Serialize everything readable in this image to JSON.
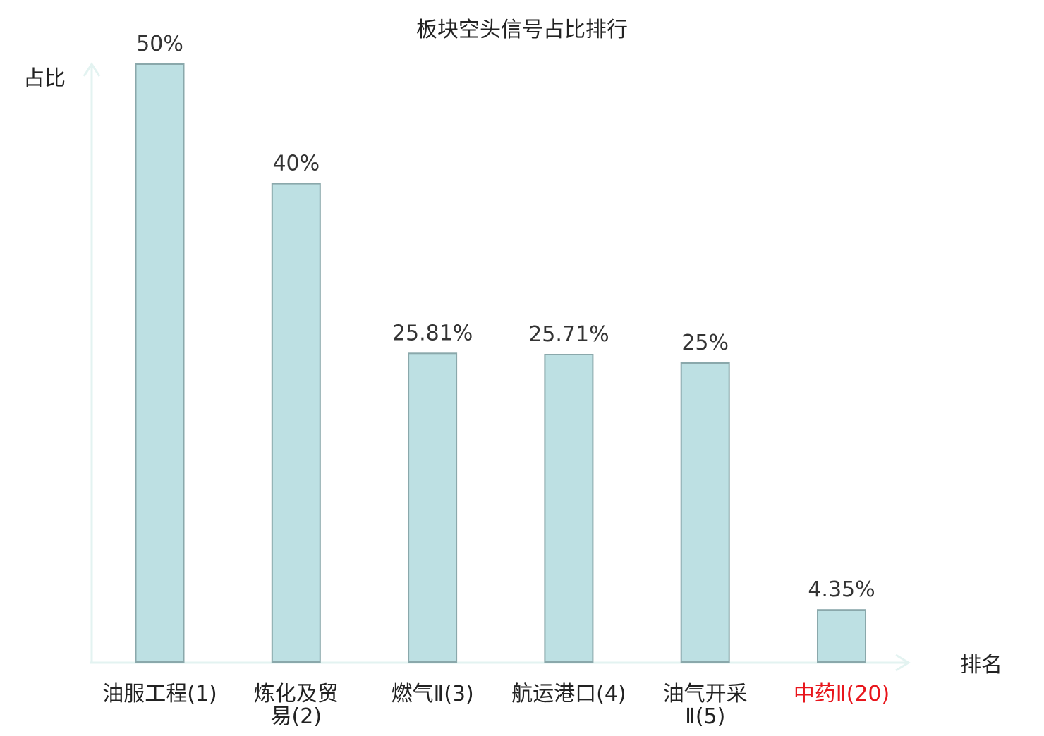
{
  "chart_data": {
    "type": "bar",
    "title": "板块空头信号占比排行",
    "ylabel": "占比",
    "xlabel": "排名",
    "categories": [
      [
        "油服工程(1)"
      ],
      [
        "炼化及贸",
        "易(2)"
      ],
      [
        "燃气Ⅱ(3)"
      ],
      [
        "航运港口(4)"
      ],
      [
        "油气开采",
        "Ⅱ(5)"
      ],
      [
        "中药Ⅱ(20)"
      ]
    ],
    "values": [
      50,
      40,
      25.81,
      25.71,
      25,
      4.35
    ],
    "value_labels": [
      "50%",
      "40%",
      "25.81%",
      "25.71%",
      "25%",
      "4.35%"
    ],
    "ylim": [
      0,
      50
    ],
    "grid": false,
    "highlight_index": 5,
    "colors": {
      "bar_fill": "#bde0e3",
      "bar_stroke": "#8aa8ab",
      "axis": "#e3f3f1",
      "text": "#333333",
      "highlight_text": "#e8161c"
    }
  }
}
